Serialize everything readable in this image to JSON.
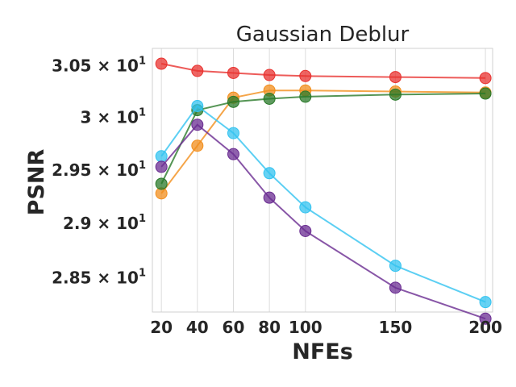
{
  "chart_data": {
    "type": "line",
    "title": "Gaussian Deblur",
    "xlabel": "NFEs",
    "ylabel": "PSNR",
    "x": [
      20,
      40,
      60,
      80,
      100,
      150,
      200
    ],
    "x_ticks": [
      "20",
      "40",
      "60",
      "80",
      "100",
      "150",
      "200"
    ],
    "xlim": [
      15,
      204
    ],
    "y_scale": "log",
    "ylim": [
      28.19,
      30.67
    ],
    "y_ticks": [
      {
        "value": 30.5,
        "mantissa": "3.05",
        "base": "10",
        "exp": "1"
      },
      {
        "value": 30.0,
        "mantissa": "3",
        "base": "10",
        "exp": "1"
      },
      {
        "value": 29.5,
        "mantissa": "2.95",
        "base": "10",
        "exp": "1"
      },
      {
        "value": 29.0,
        "mantissa": "2.9",
        "base": "10",
        "exp": "1"
      },
      {
        "value": 28.5,
        "mantissa": "2.85",
        "base": "10",
        "exp": "1"
      }
    ],
    "grid": "vertical",
    "series": [
      {
        "color": "#e8322f",
        "values": [
          30.52,
          30.45,
          30.43,
          30.41,
          30.4,
          30.39,
          30.38
        ]
      },
      {
        "color": "#f28e1c",
        "values": [
          29.28,
          29.73,
          30.19,
          30.26,
          30.26,
          30.25,
          30.24
        ]
      },
      {
        "color": "#2a7a2a",
        "values": [
          29.37,
          30.07,
          30.15,
          30.18,
          30.2,
          30.22,
          30.23
        ]
      },
      {
        "color": "#33c3f0",
        "values": [
          29.63,
          30.11,
          29.85,
          29.47,
          29.15,
          28.61,
          28.28
        ]
      },
      {
        "color": "#6a2c91",
        "values": [
          29.53,
          29.93,
          29.65,
          29.24,
          28.93,
          28.41,
          28.13
        ]
      }
    ]
  }
}
